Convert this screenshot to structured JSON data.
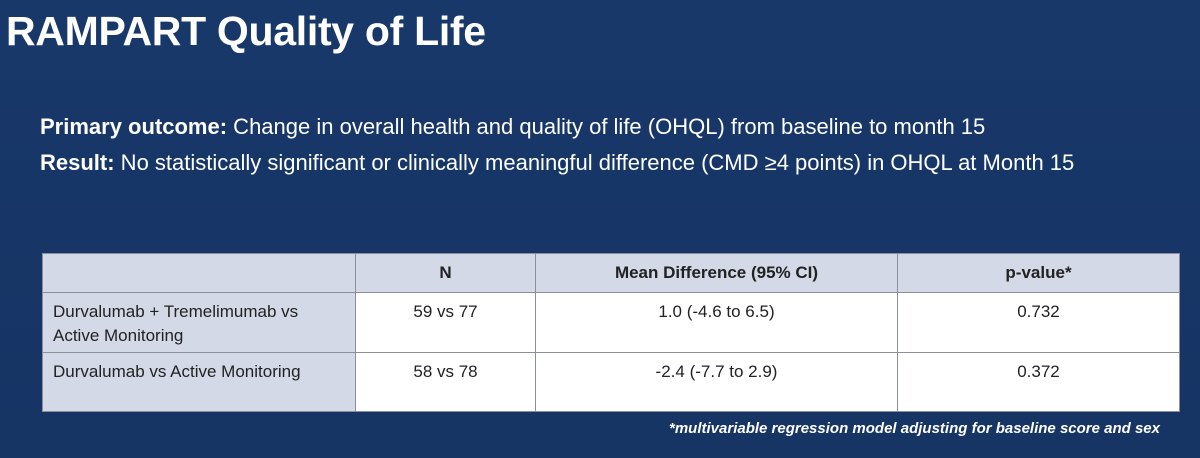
{
  "slide": {
    "title": "RAMPART Quality of Life",
    "primary_outcome": {
      "label": "Primary outcome:",
      "text": " Change in overall health and quality of life (OHQL) from baseline to month 15"
    },
    "result": {
      "label": "Result:",
      "text": " No statistically significant or clinically meaningful difference (CMD ≥4 points) in OHQL at Month 15"
    },
    "table": {
      "headers": [
        "",
        "N",
        "Mean Difference (95% CI)",
        "p-value*"
      ],
      "rows": [
        {
          "comparison": "Durvalumab + Tremelimumab vs Active Monitoring",
          "n": "59 vs 77",
          "mean_difference": "1.0 (-4.6 to 6.5)",
          "p_value": "0.732"
        },
        {
          "comparison": "Durvalumab vs Active Monitoring",
          "n": "58 vs 78",
          "mean_difference": "-2.4 (-7.7 to 2.9)",
          "p_value": "0.372"
        }
      ]
    },
    "footnote": "*multivariable regression model adjusting for baseline score and sex",
    "colors": {
      "background": "#163464",
      "header_fill": "#d3d9e6",
      "text": "#ffffff"
    }
  }
}
